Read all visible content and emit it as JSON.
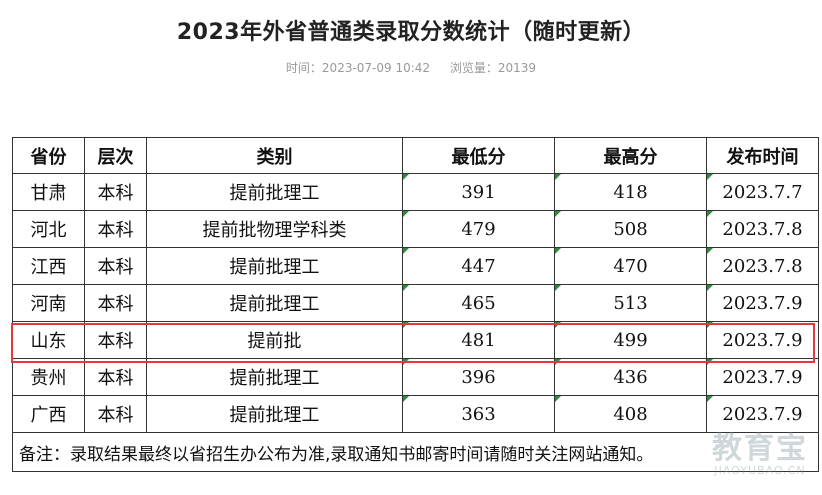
{
  "article": {
    "title": "2023年外省普通类录取分数统计（随时更新）",
    "time_label": "时间：2023-07-09 10:42",
    "views_label": "浏览量：20139"
  },
  "table": {
    "headers": [
      "省份",
      "层次",
      "类别",
      "最低分",
      "最高分",
      "发布时间"
    ],
    "rows": [
      [
        "甘肃",
        "本科",
        "提前批理工",
        "391",
        "418",
        "2023.7.7"
      ],
      [
        "河北",
        "本科",
        "提前批物理学科类",
        "479",
        "508",
        "2023.7.8"
      ],
      [
        "江西",
        "本科",
        "提前批理工",
        "447",
        "470",
        "2023.7.8"
      ],
      [
        "河南",
        "本科",
        "提前批理工",
        "465",
        "513",
        "2023.7.9"
      ],
      [
        "山东",
        "本科",
        "提前批",
        "481",
        "499",
        "2023.7.9"
      ],
      [
        "贵州",
        "本科",
        "提前批理工",
        "396",
        "436",
        "2023.7.9"
      ],
      [
        "广西",
        "本科",
        "提前批理工",
        "363",
        "408",
        "2023.7.9"
      ]
    ],
    "note": "备注：录取结果最终以省招生办公布为准,录取通知书邮寄时间请随时关注网站通知。",
    "highlight_color": "#e0393e"
  },
  "watermark": {
    "line1": "教育宝",
    "line2": "JIAOYUBAO.CN"
  }
}
